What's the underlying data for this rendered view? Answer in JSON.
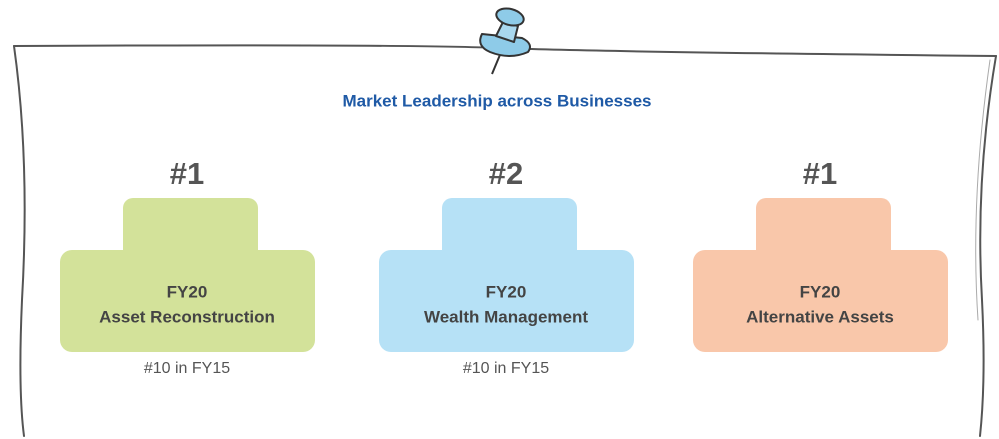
{
  "title": "Market Leadership across Businesses",
  "items": [
    {
      "rank": "#1",
      "year": "FY20",
      "business": "Asset Reconstruction",
      "note": "#10 in FY15"
    },
    {
      "rank": "#2",
      "year": "FY20",
      "business": "Wealth Management",
      "note": "#10 in FY15"
    },
    {
      "rank": "#1",
      "year": "FY20",
      "business": "Alternative Assets"
    }
  ]
}
